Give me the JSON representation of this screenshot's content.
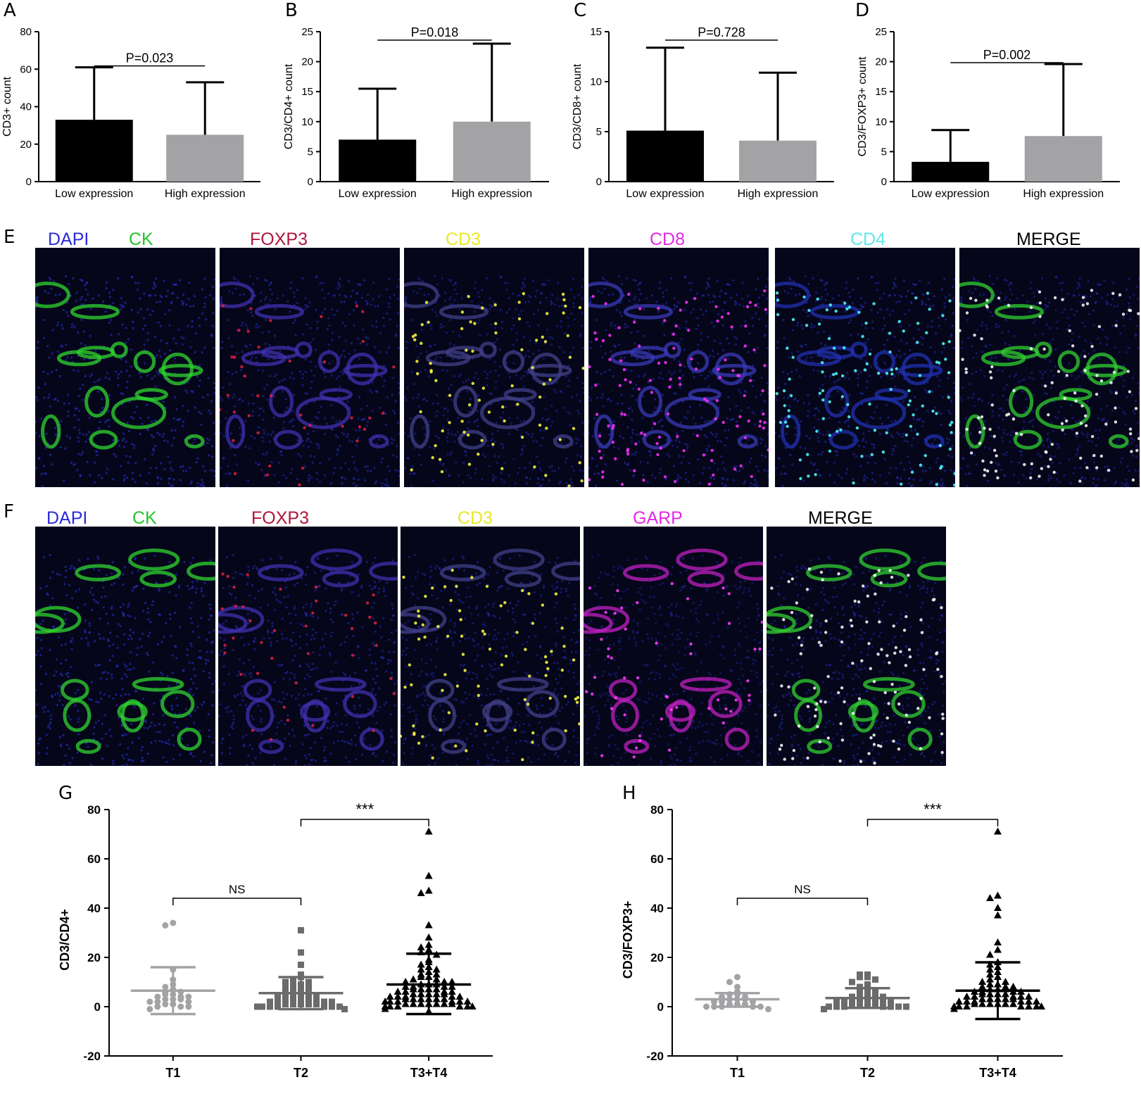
{
  "panels": {
    "a": {
      "letter": "A"
    },
    "b": {
      "letter": "B"
    },
    "c": {
      "letter": "C"
    },
    "d": {
      "letter": "D"
    },
    "e": {
      "letter": "E"
    },
    "f": {
      "letter": "F"
    },
    "g": {
      "letter": "G"
    },
    "h": {
      "letter": "H"
    }
  },
  "panel_e": {
    "labels": [
      {
        "text": "DAPI",
        "color": "#2b2bd9"
      },
      {
        "text": "CK",
        "color": "#22c52a"
      },
      {
        "text": "FOXP3",
        "color": "#b0163c"
      },
      {
        "text": "CD3",
        "color": "#e8e82a"
      },
      {
        "text": "CD8",
        "color": "#e528e5"
      },
      {
        "text": "CD4",
        "color": "#5fe8e8"
      },
      {
        "text": "MERGE",
        "color": "#000000"
      }
    ],
    "tiles": [
      "dapi-ck",
      "foxp3",
      "cd3",
      "cd8",
      "cd4",
      "merge"
    ]
  },
  "panel_f": {
    "labels": [
      {
        "text": "DAPI",
        "color": "#2b2bd9"
      },
      {
        "text": "CK",
        "color": "#22c52a"
      },
      {
        "text": "FOXP3",
        "color": "#b0163c"
      },
      {
        "text": "CD3",
        "color": "#e8e82a"
      },
      {
        "text": "GARP",
        "color": "#e528e5"
      },
      {
        "text": "MERGE",
        "color": "#000000"
      }
    ],
    "tiles": [
      "dapi-ck",
      "foxp3",
      "cd3",
      "garp",
      "merge"
    ]
  },
  "chart_data": [
    {
      "panel": "A",
      "type": "bar",
      "ylabel": "CD3+  count",
      "ylim": [
        0,
        80
      ],
      "yticks": [
        0,
        20,
        40,
        60,
        80
      ],
      "categories": [
        "Low expression",
        "High expression"
      ],
      "values": [
        33,
        25
      ],
      "errors_upper": [
        61,
        53
      ],
      "colors": [
        "#000000",
        "#a3a3a6"
      ],
      "annotation": "P=0.023"
    },
    {
      "panel": "B",
      "type": "bar",
      "ylabel": "CD3/CD4+  count",
      "ylim": [
        0,
        25
      ],
      "yticks": [
        0,
        5,
        10,
        15,
        20,
        25
      ],
      "categories": [
        "Low expression",
        "High expression"
      ],
      "values": [
        7,
        10
      ],
      "errors_upper": [
        15.5,
        23
      ],
      "colors": [
        "#000000",
        "#a3a3a6"
      ],
      "annotation": "P=0.018"
    },
    {
      "panel": "C",
      "type": "bar",
      "ylabel": "CD3/CD8+  count",
      "ylim": [
        0,
        15
      ],
      "yticks": [
        0,
        5,
        10,
        15
      ],
      "categories": [
        "Low expression",
        "High expression"
      ],
      "values": [
        5.1,
        4.1
      ],
      "errors_upper": [
        13.4,
        10.9
      ],
      "colors": [
        "#000000",
        "#a3a3a6"
      ],
      "annotation": "P=0.728"
    },
    {
      "panel": "D",
      "type": "bar",
      "ylabel": "CD3/FOXP3+  count",
      "ylim": [
        0,
        25
      ],
      "yticks": [
        0,
        5,
        10,
        15,
        20,
        25
      ],
      "categories": [
        "Low expression",
        "High expression"
      ],
      "values": [
        3.3,
        7.6
      ],
      "errors_upper": [
        8.6,
        19.6
      ],
      "colors": [
        "#000000",
        "#a3a3a6"
      ],
      "annotation": "P=0.002"
    },
    {
      "panel": "G",
      "type": "scatter",
      "ylabel": "CD3/CD4+",
      "ylim": [
        -20,
        80
      ],
      "yticks": [
        -20,
        0,
        20,
        40,
        60,
        80
      ],
      "categories": [
        "T1",
        "T2",
        "T3+T4"
      ],
      "colors": [
        "#a3a3a6",
        "#6b6b6b",
        "#000000"
      ],
      "markers": [
        "circle",
        "square",
        "triangle"
      ],
      "summary": [
        {
          "mean": 6.5,
          "sd_low": -3,
          "sd_high": 16
        },
        {
          "mean": 5.5,
          "sd_low": -1,
          "sd_high": 12
        },
        {
          "mean": 9,
          "sd_low": -3,
          "sd_high": 21.5
        }
      ],
      "series": [
        {
          "values": [
            34,
            33,
            15,
            11,
            9,
            8,
            7,
            6,
            6,
            5,
            5,
            4,
            4,
            4,
            3,
            3,
            3,
            2,
            2,
            2,
            1,
            1,
            0,
            0,
            0,
            -1
          ]
        },
        {
          "values": [
            31,
            22,
            17,
            13,
            12,
            11,
            10,
            10,
            9,
            9,
            8,
            8,
            7,
            7,
            6,
            6,
            5,
            5,
            5,
            4,
            4,
            4,
            3,
            3,
            3,
            3,
            2,
            2,
            2,
            2,
            2,
            1,
            1,
            1,
            1,
            1,
            0,
            0,
            0,
            0,
            0,
            0,
            0,
            -1
          ]
        },
        {
          "values": [
            71,
            53,
            47,
            46,
            33,
            28,
            25,
            24,
            23,
            22,
            21,
            19,
            18,
            17,
            16,
            15,
            15,
            14,
            13,
            13,
            12,
            12,
            11,
            11,
            10,
            10,
            10,
            9,
            9,
            9,
            8,
            8,
            8,
            8,
            7,
            7,
            7,
            7,
            6,
            6,
            6,
            6,
            5,
            5,
            5,
            5,
            5,
            4,
            4,
            4,
            4,
            4,
            3,
            3,
            3,
            3,
            3,
            3,
            2,
            2,
            2,
            2,
            2,
            2,
            1,
            1,
            1,
            1,
            1,
            1,
            1,
            0,
            0,
            0,
            0,
            0,
            0,
            -1,
            -2
          ]
        }
      ],
      "brackets": [
        {
          "from": 0,
          "to": 1,
          "label": "NS",
          "y": 44
        },
        {
          "from": 1,
          "to": 2,
          "label": "***",
          "y": 76
        }
      ]
    },
    {
      "panel": "H",
      "type": "scatter",
      "ylabel": "CD3/FOXP3+",
      "ylim": [
        -20,
        80
      ],
      "yticks": [
        -20,
        0,
        20,
        40,
        60,
        80
      ],
      "categories": [
        "T1",
        "T2",
        "T3+T4"
      ],
      "colors": [
        "#a3a3a6",
        "#6b6b6b",
        "#000000"
      ],
      "markers": [
        "circle",
        "square",
        "triangle"
      ],
      "summary": [
        {
          "mean": 3,
          "sd_low": 0,
          "sd_high": 5.5
        },
        {
          "mean": 3.5,
          "sd_low": -0.5,
          "sd_high": 7.5
        },
        {
          "mean": 6.5,
          "sd_low": -5,
          "sd_high": 18
        }
      ],
      "series": [
        {
          "values": [
            12,
            10,
            8,
            6,
            5,
            5,
            4,
            4,
            3,
            3,
            3,
            2,
            2,
            2,
            1,
            1,
            1,
            0,
            0,
            0,
            0,
            0,
            -1
          ]
        },
        {
          "values": [
            13,
            13,
            12,
            12,
            11,
            10,
            9,
            8,
            7,
            6,
            6,
            5,
            5,
            4,
            4,
            4,
            3,
            3,
            3,
            3,
            2,
            2,
            2,
            2,
            1,
            1,
            1,
            1,
            0,
            0,
            0,
            0,
            0,
            0,
            0,
            -1
          ]
        },
        {
          "values": [
            71,
            45,
            44,
            40,
            37,
            26,
            23,
            21,
            18,
            17,
            16,
            15,
            14,
            13,
            12,
            11,
            10,
            10,
            9,
            9,
            8,
            8,
            8,
            7,
            7,
            7,
            6,
            6,
            6,
            6,
            5,
            5,
            5,
            5,
            4,
            4,
            4,
            4,
            4,
            3,
            3,
            3,
            3,
            3,
            2,
            2,
            2,
            2,
            2,
            2,
            1,
            1,
            1,
            1,
            1,
            1,
            0,
            0,
            0,
            0,
            0,
            0,
            0,
            -1
          ]
        }
      ],
      "brackets": [
        {
          "from": 0,
          "to": 1,
          "label": "NS",
          "y": 44
        },
        {
          "from": 1,
          "to": 2,
          "label": "***",
          "y": 76
        }
      ]
    }
  ]
}
